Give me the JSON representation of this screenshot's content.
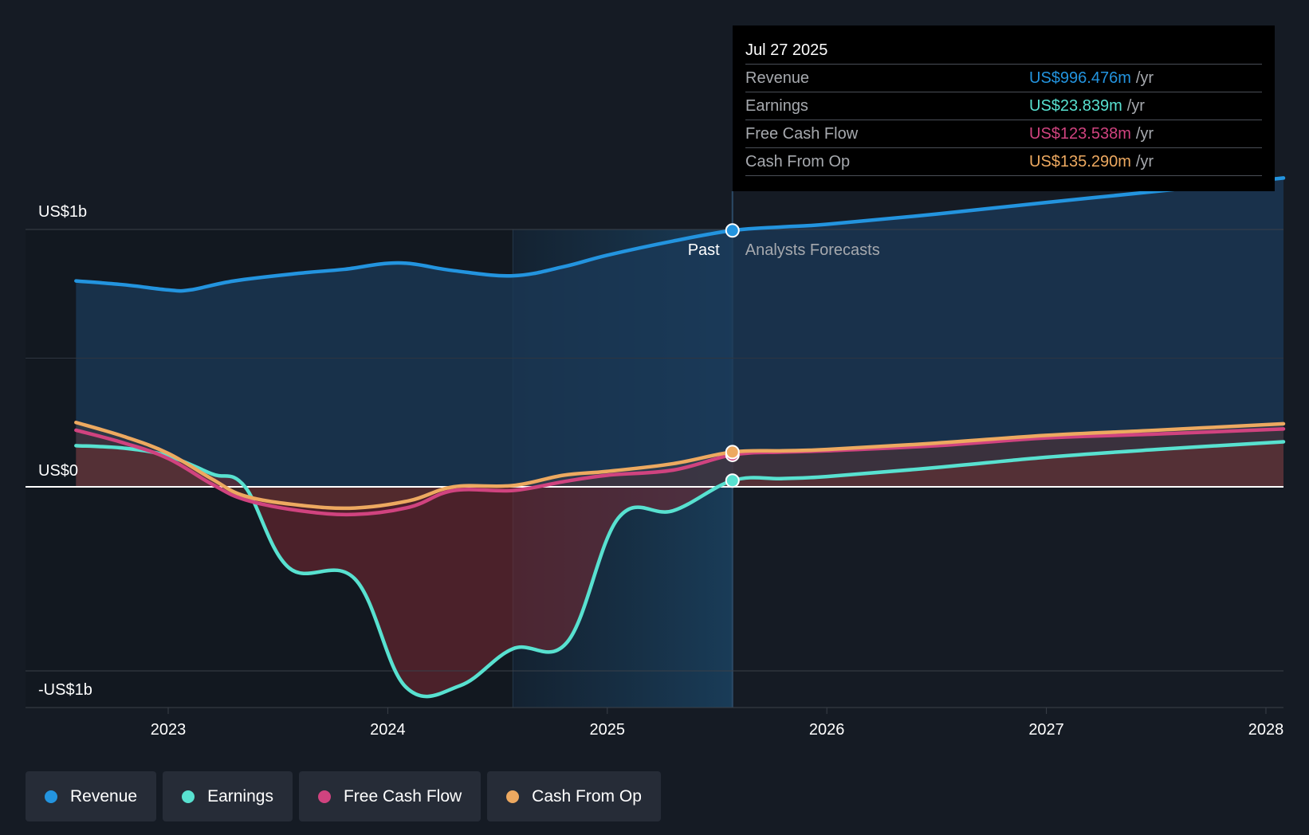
{
  "chart_data": {
    "type": "line",
    "x_ticks": [
      "2023",
      "2024",
      "2025",
      "2026",
      "2027",
      "2028"
    ],
    "y_ticks": [
      {
        "label": "US$1b",
        "value": 1000
      },
      {
        "label": "US$0",
        "value": 0
      },
      {
        "label": "-US$1b",
        "value": -1000
      }
    ],
    "ylim": [
      -1200,
      1400
    ],
    "xlim": [
      2022.35,
      2028.08
    ],
    "past_start": 2024.57,
    "divider": 2025.57,
    "region_labels": {
      "past": "Past",
      "forecast": "Analysts Forecasts"
    },
    "series": [
      {
        "name": "Revenue",
        "color": "#2394df",
        "x": [
          2022.58,
          2022.8,
          2023.0,
          2023.1,
          2023.3,
          2023.6,
          2023.8,
          2024.05,
          2024.3,
          2024.57,
          2024.8,
          2025.0,
          2025.3,
          2025.57,
          2025.8,
          2026.0,
          2026.5,
          2027.0,
          2027.5,
          2028.08
        ],
        "y": [
          800,
          785,
          765,
          765,
          800,
          830,
          845,
          870,
          840,
          820,
          855,
          900,
          955,
          996,
          1010,
          1020,
          1060,
          1105,
          1148,
          1200
        ]
      },
      {
        "name": "Earnings",
        "color": "#58e1d0",
        "x": [
          2022.58,
          2022.8,
          2023.0,
          2023.2,
          2023.35,
          2023.55,
          2023.85,
          2024.08,
          2024.33,
          2024.57,
          2024.82,
          2025.05,
          2025.3,
          2025.57,
          2025.8,
          2026.0,
          2026.5,
          2027.0,
          2027.5,
          2028.08
        ],
        "y": [
          160,
          150,
          120,
          50,
          0,
          -440,
          -500,
          -1085,
          -1080,
          -880,
          -840,
          -170,
          -130,
          24,
          32,
          40,
          75,
          115,
          145,
          175
        ]
      },
      {
        "name": "Free Cash Flow",
        "color": "#d0437f",
        "x": [
          2022.58,
          2022.8,
          2023.0,
          2023.2,
          2023.35,
          2023.6,
          2023.85,
          2024.1,
          2024.3,
          2024.57,
          2024.8,
          2025.0,
          2025.3,
          2025.57,
          2025.8,
          2026.0,
          2026.5,
          2027.0,
          2027.5,
          2028.08
        ],
        "y": [
          220,
          170,
          110,
          10,
          -70,
          -130,
          -150,
          -110,
          -20,
          -20,
          20,
          45,
          65,
          124,
          135,
          140,
          160,
          190,
          205,
          225
        ]
      },
      {
        "name": "Cash From Op",
        "color": "#eda960",
        "x": [
          2022.58,
          2022.8,
          2023.0,
          2023.2,
          2023.35,
          2023.6,
          2023.85,
          2024.1,
          2024.3,
          2024.57,
          2024.8,
          2025.0,
          2025.3,
          2025.57,
          2025.8,
          2026.0,
          2026.5,
          2027.0,
          2027.5,
          2028.08
        ],
        "y": [
          250,
          195,
          130,
          30,
          -50,
          -100,
          -115,
          -75,
          0,
          5,
          45,
          60,
          90,
          135,
          140,
          145,
          170,
          200,
          220,
          245
        ]
      }
    ]
  },
  "tooltip": {
    "date": "Jul 27 2025",
    "rows": [
      {
        "label": "Revenue",
        "value": "US$996.476m",
        "unit": "/yr",
        "color": "#2394df"
      },
      {
        "label": "Earnings",
        "value": "US$23.839m",
        "unit": "/yr",
        "color": "#58e1d0"
      },
      {
        "label": "Free Cash Flow",
        "value": "US$123.538m",
        "unit": "/yr",
        "color": "#d0437f"
      },
      {
        "label": "Cash From Op",
        "value": "US$135.290m",
        "unit": "/yr",
        "color": "#eda960"
      }
    ]
  },
  "legend": [
    {
      "label": "Revenue",
      "color": "#2394df"
    },
    {
      "label": "Earnings",
      "color": "#58e1d0"
    },
    {
      "label": "Free Cash Flow",
      "color": "#d0437f"
    },
    {
      "label": "Cash From Op",
      "color": "#eda960"
    }
  ]
}
